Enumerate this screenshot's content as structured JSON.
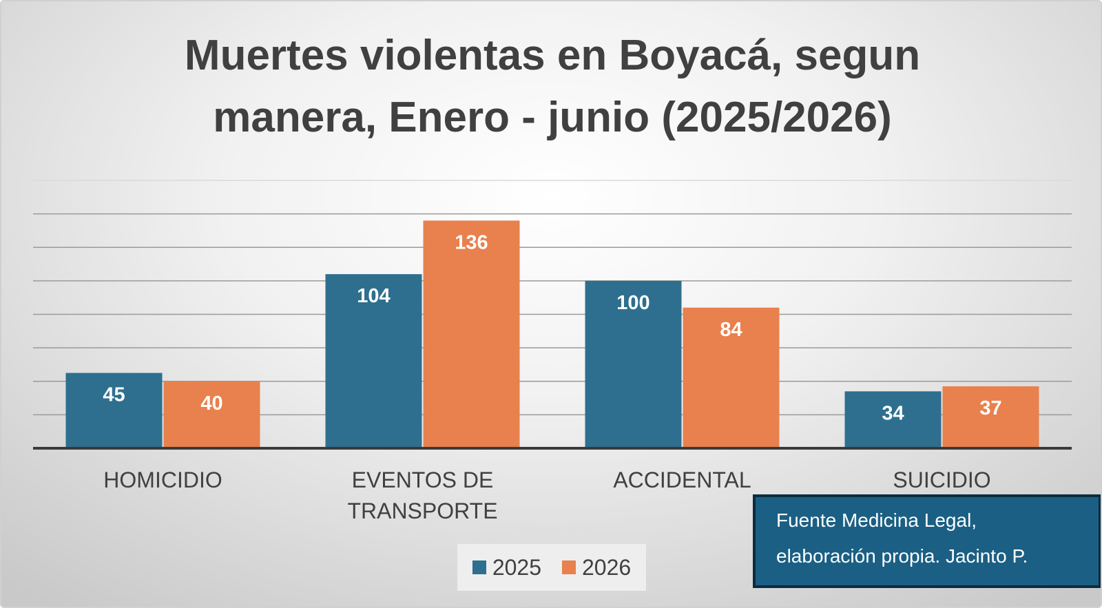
{
  "chart_data": {
    "type": "bar",
    "title_lines": [
      "Muertes violentas en Boyacá, segun",
      "manera, Enero - junio (2025/2026)"
    ],
    "categories": [
      [
        "HOMICIDIO"
      ],
      [
        "EVENTOS DE",
        "TRANSPORTE"
      ],
      [
        "ACCIDENTAL"
      ],
      [
        "SUICIDIO"
      ]
    ],
    "series": [
      {
        "name": "2025",
        "color": "#2e6f8f",
        "values": [
          45,
          104,
          100,
          34
        ]
      },
      {
        "name": "2026",
        "color": "#e8814d",
        "values": [
          40,
          136,
          84,
          37
        ]
      }
    ],
    "ylim": [
      0,
      160
    ],
    "grid": true,
    "data_labels": true,
    "legend_position": "bottom"
  },
  "source_note": {
    "lines": [
      "Fuente Medicina Legal,",
      "elaboración propia. Jacinto P."
    ]
  }
}
